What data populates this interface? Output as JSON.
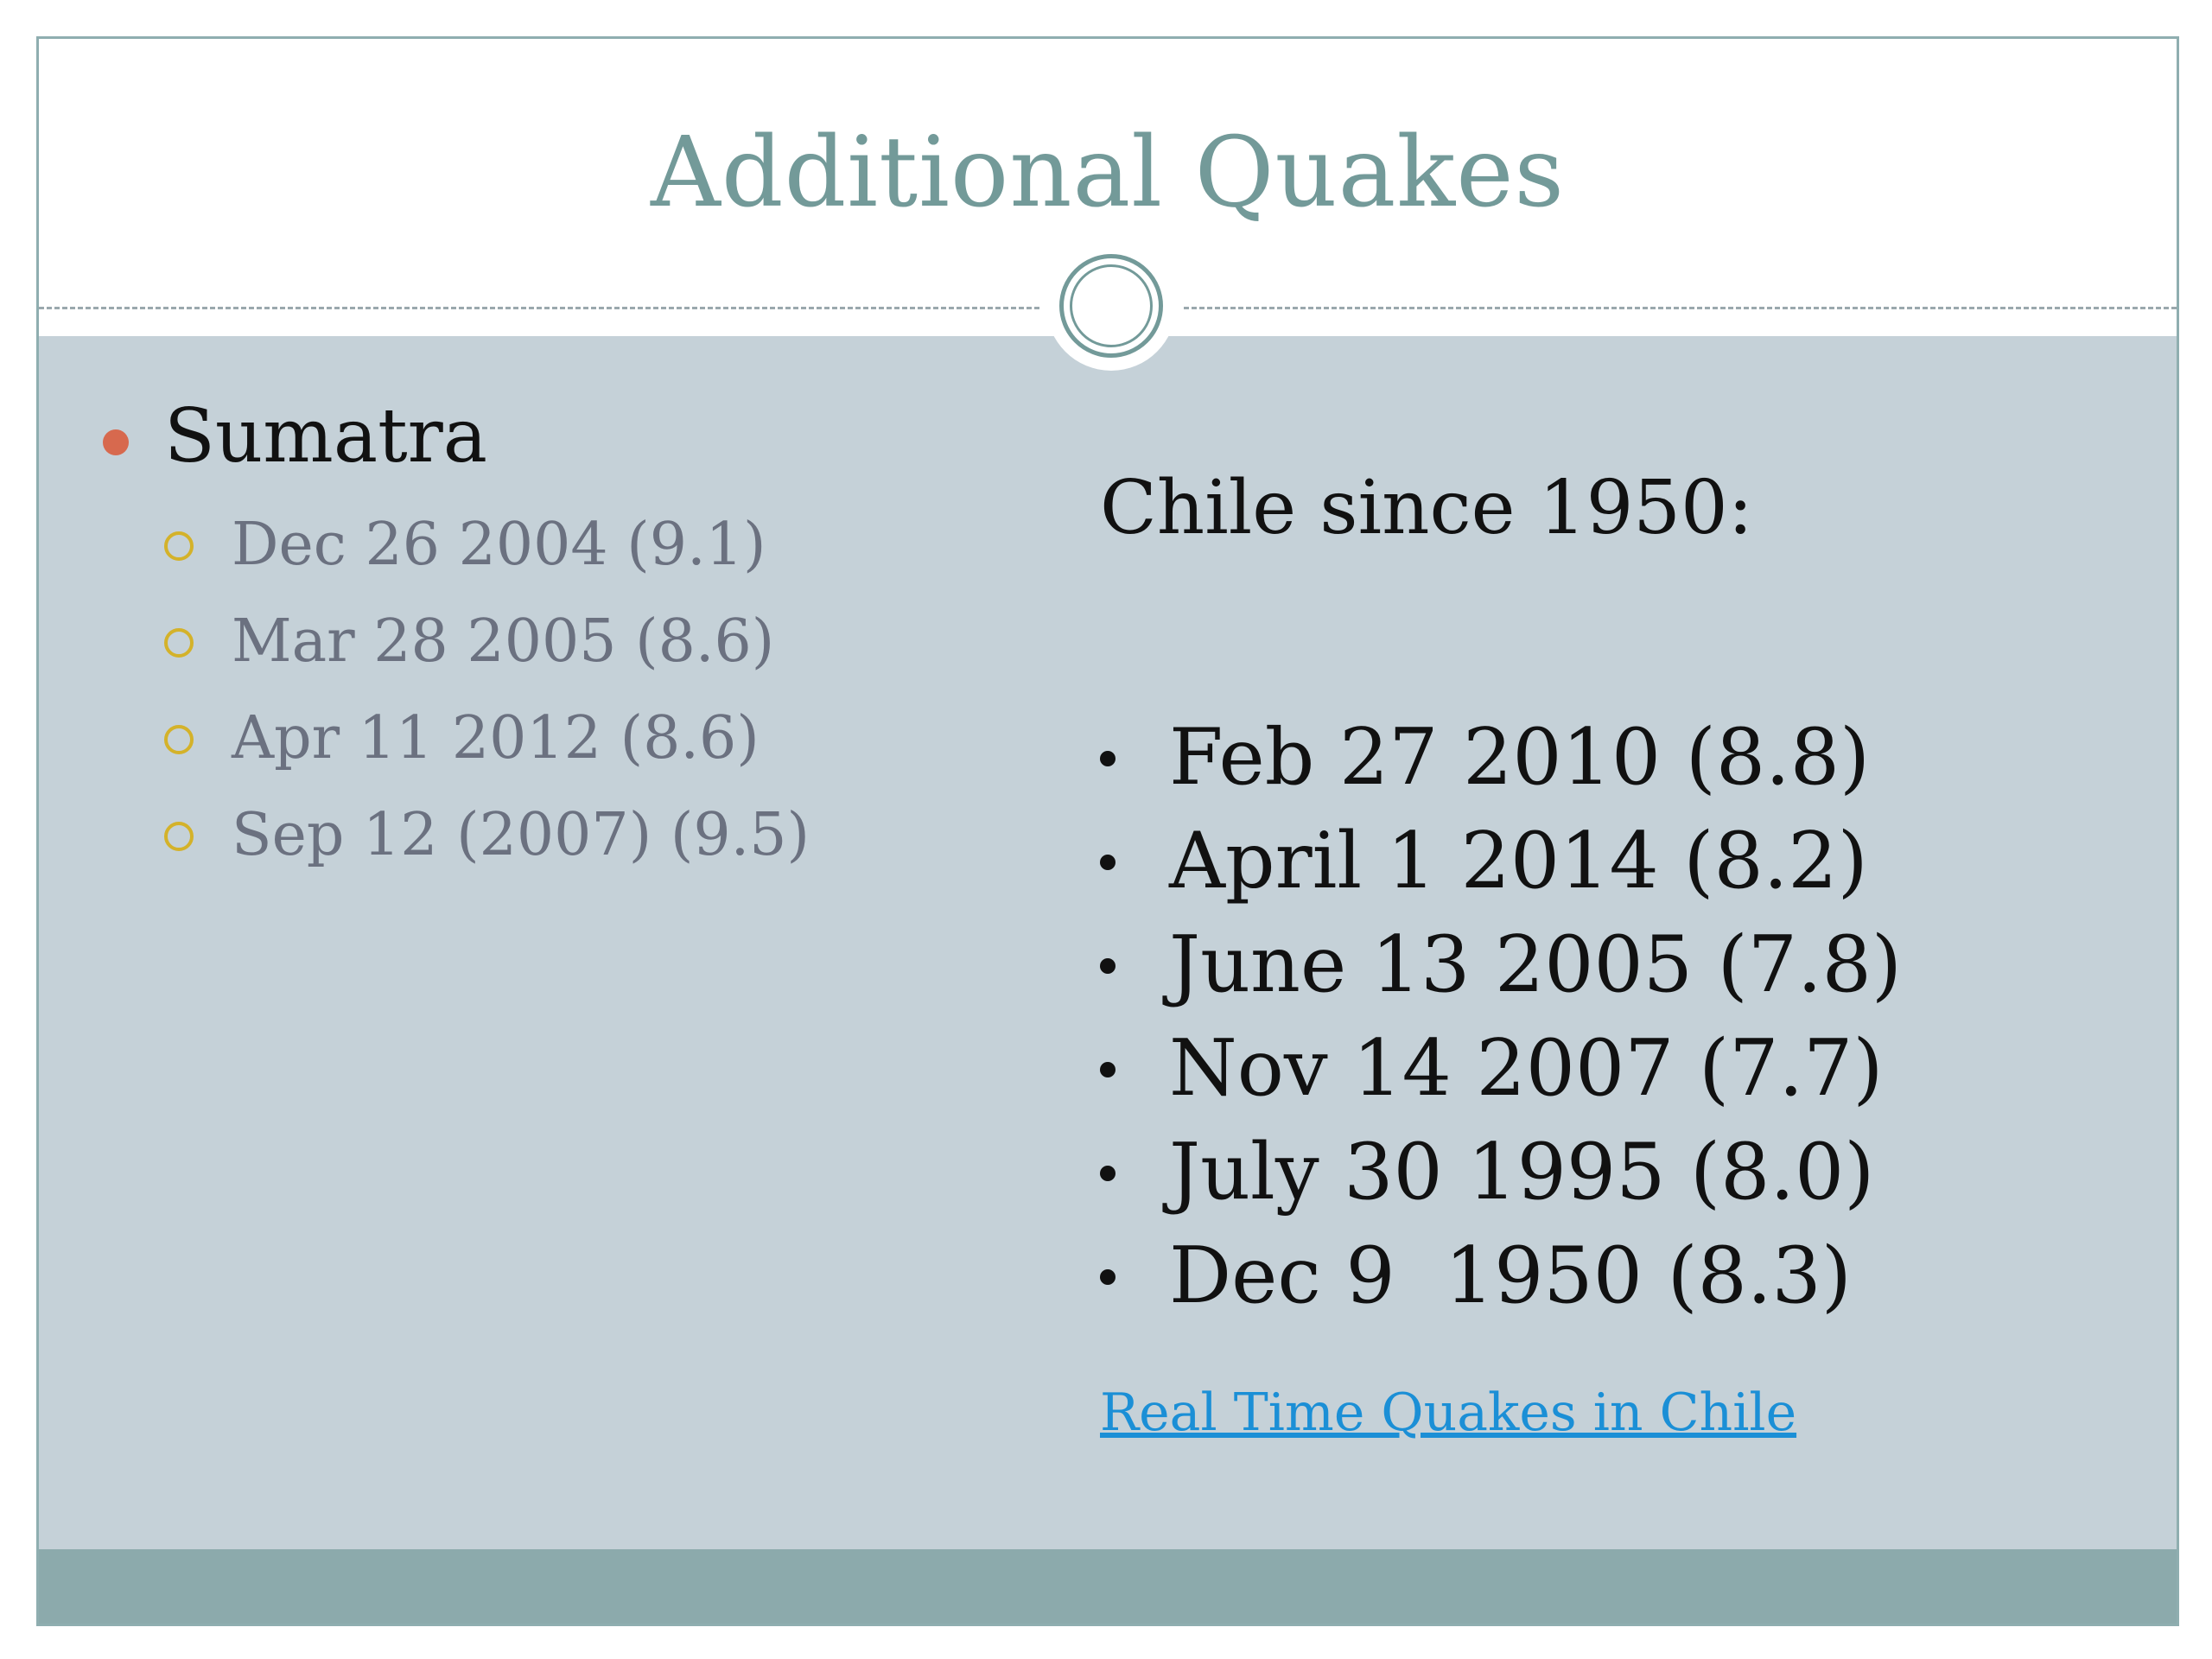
{
  "slide": {
    "title": "Additional Quakes",
    "left_column": {
      "heading": "Sumatra",
      "items": [
        "Dec 26 2004 (9.1)",
        "Mar 28 2005 (8.6)",
        "Apr 11 2012 (8.6)",
        "Sep 12 (2007) (9.5)"
      ]
    },
    "right_column": {
      "heading": "Chile since 1950:",
      "items": [
        "Feb 27 2010 (8.8)",
        "April 1 2014 (8.2)",
        "June 13 2005 (7.8)",
        "Nov 14 2007 (7.7)",
        "July 30 1995 (8.0)",
        "Dec 9  1950 (8.3)"
      ],
      "link_text": "Real Time Quakes in Chile"
    }
  },
  "colors": {
    "title": "#739a99",
    "content_background": "#c5d1d8",
    "footer_bar": "#8caaac",
    "level1_bullet": "#d7694e",
    "level2_bullet": "#d4b22a",
    "sub_text": "#6b7180",
    "link": "#1b8fd6"
  },
  "icons": {
    "header_ornament": "double-ring-circle",
    "level1_bullet": "filled-circle",
    "level2_bullet": "hollow-circle",
    "chile_bullet": "filled-dot"
  }
}
